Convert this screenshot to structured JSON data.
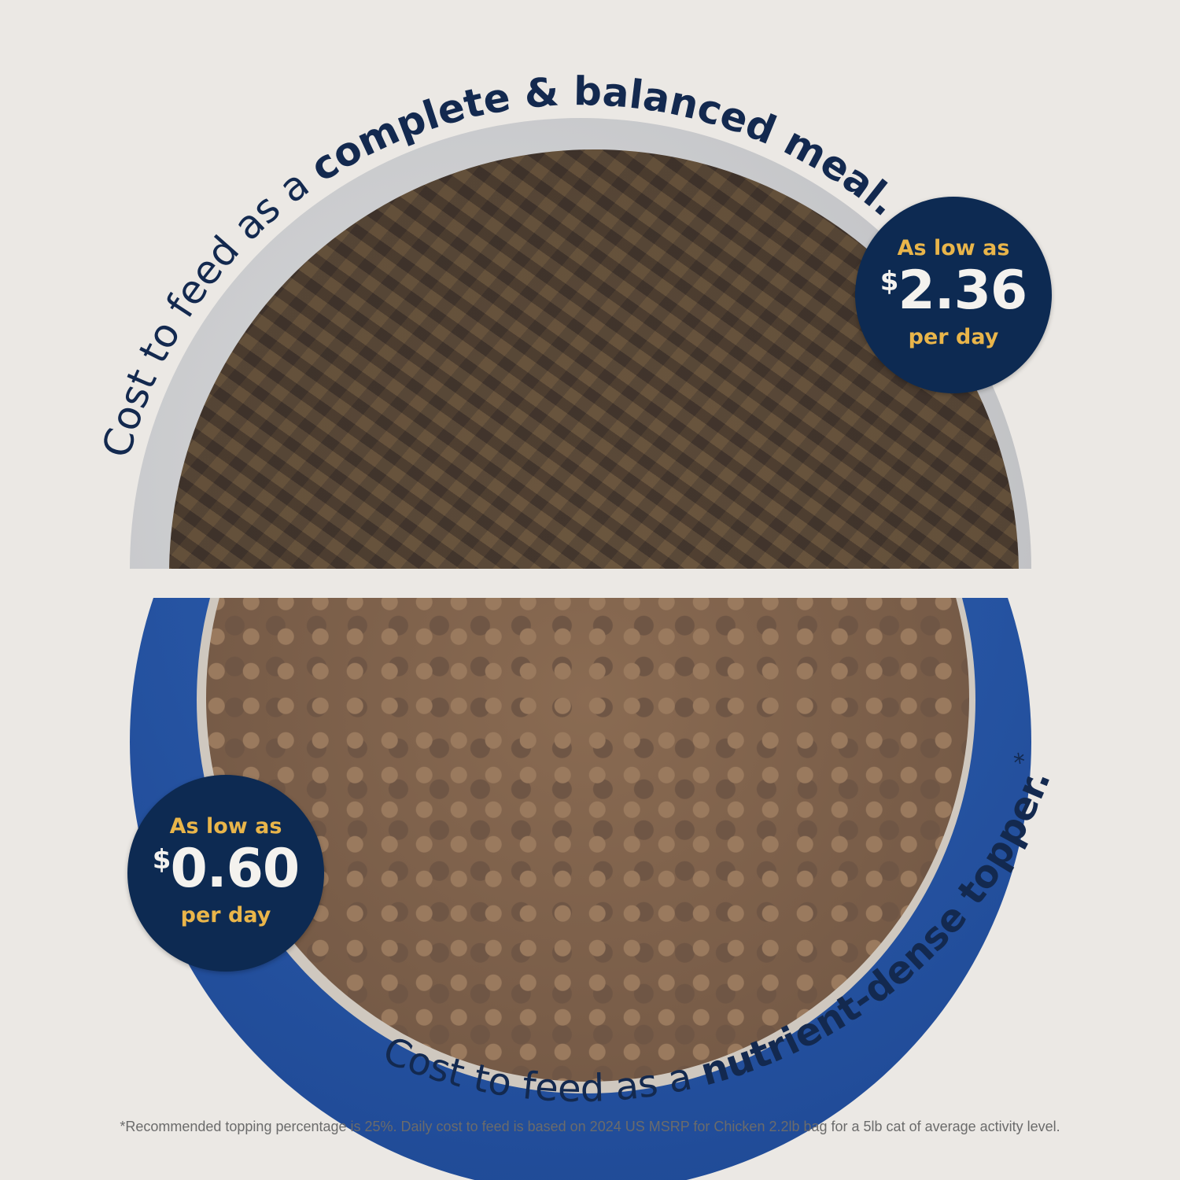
{
  "top_caption": {
    "prefix": "Cost to feed as a ",
    "emphasis": "complete & balanced meal."
  },
  "bottom_caption": {
    "prefix": "Cost to feed as a ",
    "emphasis": "nutrient-dense topper.",
    "mark": "*"
  },
  "badge_top": {
    "line1": "As low as",
    "currency": "$",
    "price": "2.36",
    "line3": "per day"
  },
  "badge_bottom": {
    "line1": "As low as",
    "currency": "$",
    "price": "0.60",
    "line3": "per day"
  },
  "footnote": "*Recommended topping percentage is 25%. Daily cost to feed is based on 2024 US MSRP for Chicken 2.2lb bag for a 5lb cat of average activity level.",
  "colors": {
    "background": "#ebe8e4",
    "navy": "#0d2a52",
    "gold": "#e9b54a",
    "bowl_blue": "#1f4f9a"
  }
}
